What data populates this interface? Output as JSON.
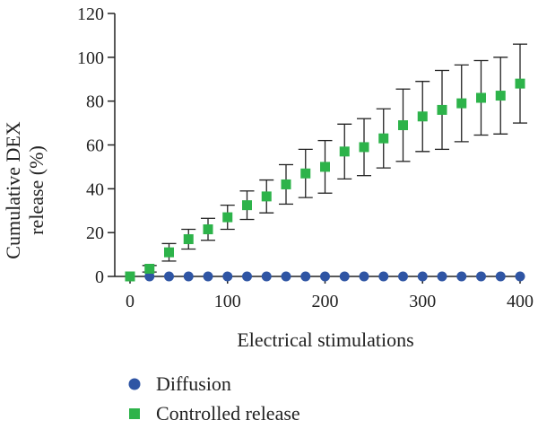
{
  "chart_data": {
    "type": "scatter",
    "title": "",
    "xlabel": "Electrical stimulations",
    "ylabel_lines": [
      "Cumulative DEX",
      "release (%)"
    ],
    "xlim": [
      0,
      400
    ],
    "ylim": [
      0,
      120
    ],
    "xticks": [
      0,
      100,
      200,
      300,
      400
    ],
    "yticks": [
      0,
      20,
      40,
      60,
      80,
      100,
      120
    ],
    "grid": false,
    "legend_position": "bottom-left",
    "x": [
      0,
      20,
      40,
      60,
      80,
      100,
      120,
      140,
      160,
      180,
      200,
      220,
      240,
      260,
      280,
      300,
      320,
      340,
      360,
      380,
      400
    ],
    "series": [
      {
        "name": "Diffusion",
        "marker": "circle",
        "color": "#2f55a4",
        "values": [
          0,
          0,
          0,
          0,
          0,
          0,
          0,
          0,
          0,
          0,
          0,
          0,
          0,
          0,
          0,
          0,
          0,
          0,
          0,
          0,
          0
        ]
      },
      {
        "name": "Controlled release",
        "marker": "square",
        "color": "#2db34a",
        "values": [
          0,
          3.5,
          11,
          17,
          21.5,
          27,
          32.5,
          36.5,
          42,
          47,
          50,
          57,
          59,
          63,
          69,
          73,
          76,
          79,
          81.5,
          82.5,
          88
        ],
        "error": [
          0,
          1.5,
          4,
          4.5,
          5,
          5.5,
          6.5,
          7.5,
          9,
          11,
          12,
          12.5,
          13,
          13.5,
          16.5,
          16,
          18,
          17.5,
          17,
          17.5,
          18
        ]
      }
    ]
  }
}
